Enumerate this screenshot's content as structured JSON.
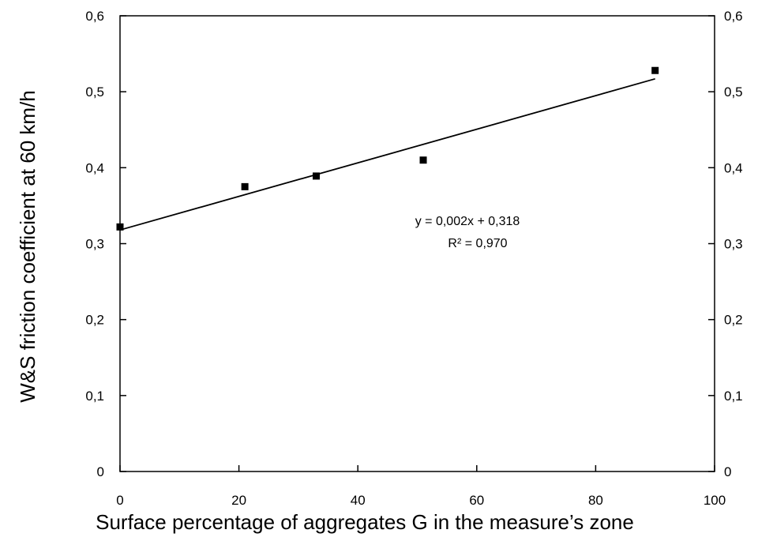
{
  "chart_data": {
    "type": "scatter",
    "title": "",
    "xlabel": "Surface percentage of aggregates G in the measure’s zone",
    "ylabel": "W&S friction coefficient at 60 km/h",
    "xlim": [
      0,
      100
    ],
    "ylim": [
      0,
      0.6
    ],
    "x_ticks": [
      "0",
      "20",
      "40",
      "60",
      "80",
      "100"
    ],
    "y_ticks": [
      "0",
      "0,1",
      "0,2",
      "0,3",
      "0,4",
      "0,5",
      "0,6"
    ],
    "y2_ticks": [
      "0",
      "0,1",
      "0,2",
      "0,3",
      "0,4",
      "0,5",
      "0,6"
    ],
    "series": [
      {
        "points": [
          {
            "x": 0,
            "y": 0.322
          },
          {
            "x": 21,
            "y": 0.375
          },
          {
            "x": 33,
            "y": 0.389
          },
          {
            "x": 51,
            "y": 0.41
          },
          {
            "x": 90,
            "y": 0.528
          }
        ],
        "color": "#000000",
        "marker": "square"
      }
    ],
    "trendline": {
      "type": "linear",
      "from": {
        "x": 0,
        "y": 0.318
      },
      "to": {
        "x": 90,
        "y": 0.517
      },
      "equation": "y = 0,002x + 0,318",
      "r2": "R² = 0,970"
    },
    "grid": false,
    "legend": "none"
  }
}
